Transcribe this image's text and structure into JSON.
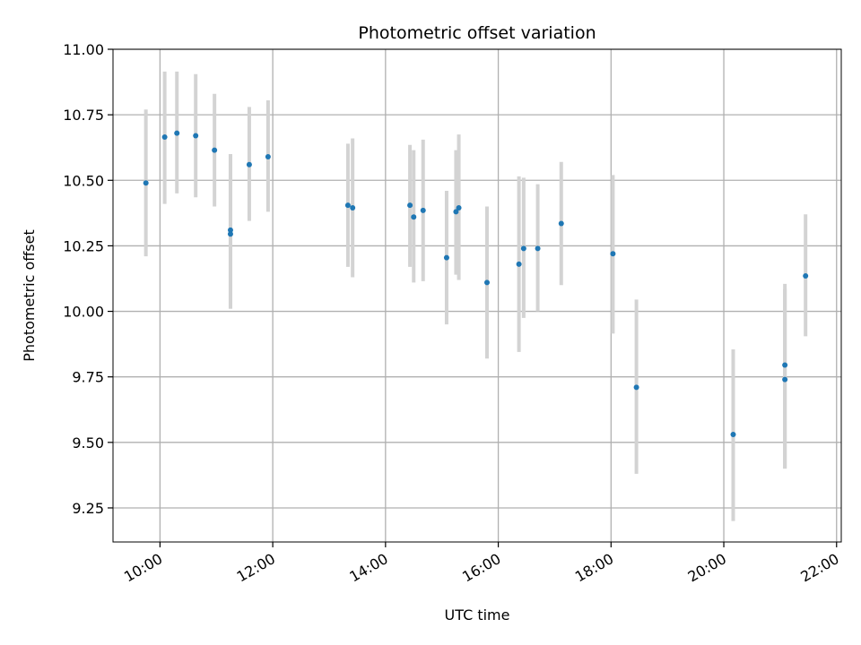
{
  "chart_data": {
    "type": "scatter",
    "title": "Photometric offset variation",
    "xlabel": "UTC time",
    "ylabel": "Photometric offset",
    "x_axis": {
      "type": "time",
      "range": [
        "09:10",
        "22:05"
      ],
      "ticks": [
        "10:00",
        "12:00",
        "14:00",
        "16:00",
        "18:00",
        "20:00",
        "22:00"
      ]
    },
    "y_axis": {
      "range": [
        9.12,
        11.0
      ],
      "ticks": [
        "9.25",
        "9.50",
        "9.75",
        "10.00",
        "10.25",
        "10.50",
        "10.75",
        "11.00"
      ]
    },
    "grid": true,
    "colors": {
      "point": "#1f77b4",
      "errorbar": "#d3d3d3",
      "grid": "#b0b0b0"
    },
    "points": [
      {
        "x": "09:45",
        "y": 10.49,
        "ylow": 10.21,
        "yhigh": 10.77
      },
      {
        "x": "10:05",
        "y": 10.665,
        "ylow": 10.41,
        "yhigh": 10.915
      },
      {
        "x": "10:18",
        "y": 10.68,
        "ylow": 10.45,
        "yhigh": 10.915
      },
      {
        "x": "10:38",
        "y": 10.67,
        "ylow": 10.435,
        "yhigh": 10.905
      },
      {
        "x": "10:58",
        "y": 10.615,
        "ylow": 10.4,
        "yhigh": 10.83
      },
      {
        "x": "11:15",
        "y": 10.31,
        "ylow": 10.01,
        "yhigh": 10.6
      },
      {
        "x": "11:15",
        "y": 10.295,
        "ylow": 10.01,
        "yhigh": 10.6
      },
      {
        "x": "11:35",
        "y": 10.56,
        "ylow": 10.345,
        "yhigh": 10.78
      },
      {
        "x": "11:55",
        "y": 10.59,
        "ylow": 10.38,
        "yhigh": 10.805
      },
      {
        "x": "13:20",
        "y": 10.405,
        "ylow": 10.17,
        "yhigh": 10.64
      },
      {
        "x": "13:25",
        "y": 10.395,
        "ylow": 10.13,
        "yhigh": 10.66
      },
      {
        "x": "14:26",
        "y": 10.405,
        "ylow": 10.17,
        "yhigh": 10.635
      },
      {
        "x": "14:30",
        "y": 10.36,
        "ylow": 10.11,
        "yhigh": 10.615
      },
      {
        "x": "14:40",
        "y": 10.385,
        "ylow": 10.115,
        "yhigh": 10.655
      },
      {
        "x": "15:05",
        "y": 10.205,
        "ylow": 9.95,
        "yhigh": 10.46
      },
      {
        "x": "15:15",
        "y": 10.38,
        "ylow": 10.14,
        "yhigh": 10.615
      },
      {
        "x": "15:18",
        "y": 10.395,
        "ylow": 10.12,
        "yhigh": 10.675
      },
      {
        "x": "15:48",
        "y": 10.11,
        "ylow": 9.82,
        "yhigh": 10.4
      },
      {
        "x": "16:22",
        "y": 10.18,
        "ylow": 9.845,
        "yhigh": 10.515
      },
      {
        "x": "16:27",
        "y": 10.24,
        "ylow": 9.975,
        "yhigh": 10.51
      },
      {
        "x": "16:42",
        "y": 10.24,
        "ylow": 10.0,
        "yhigh": 10.485
      },
      {
        "x": "17:07",
        "y": 10.335,
        "ylow": 10.1,
        "yhigh": 10.57
      },
      {
        "x": "18:02",
        "y": 10.22,
        "ylow": 9.915,
        "yhigh": 10.52
      },
      {
        "x": "18:27",
        "y": 9.71,
        "ylow": 9.38,
        "yhigh": 10.045
      },
      {
        "x": "20:10",
        "y": 9.53,
        "ylow": 9.2,
        "yhigh": 9.855
      },
      {
        "x": "21:05",
        "y": 9.795,
        "ylow": 9.4,
        "yhigh": 10.105
      },
      {
        "x": "21:05",
        "y": 9.74,
        "ylow": 9.4,
        "yhigh": 10.085
      },
      {
        "x": "21:27",
        "y": 10.135,
        "ylow": 9.905,
        "yhigh": 10.37
      }
    ]
  }
}
